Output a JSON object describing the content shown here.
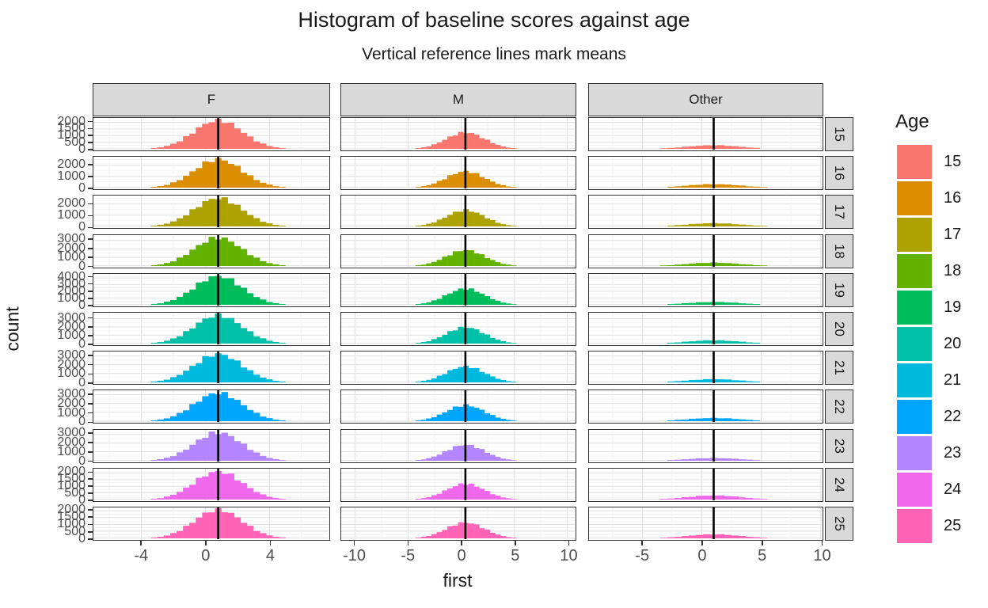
{
  "title": "Histogram of baseline scores against age",
  "subtitle": "Vertical reference lines mark means",
  "axes": {
    "x_label": "first",
    "y_label": "count"
  },
  "legend": {
    "title": "Age",
    "entries": [
      {
        "label": "15",
        "color": "#F8766D"
      },
      {
        "label": "16",
        "color": "#DB8E00"
      },
      {
        "label": "17",
        "color": "#AEA200"
      },
      {
        "label": "18",
        "color": "#64B200"
      },
      {
        "label": "19",
        "color": "#00BD5C"
      },
      {
        "label": "20",
        "color": "#00C1A7"
      },
      {
        "label": "21",
        "color": "#00BADE"
      },
      {
        "label": "22",
        "color": "#00A6FF"
      },
      {
        "label": "23",
        "color": "#B385FF"
      },
      {
        "label": "24",
        "color": "#EF67EB"
      },
      {
        "label": "25",
        "color": "#FF63B6"
      }
    ]
  },
  "chart_data": {
    "type": "bar",
    "subtype": "faceted-histogram",
    "title": "Histogram of baseline scores against age",
    "subtitle": "Vertical reference lines mark means",
    "xlabel": "first",
    "ylabel": "count",
    "grid": true,
    "legend_position": "right",
    "facet_columns": [
      {
        "label": "F",
        "xdomain": [
          -7.0,
          7.7
        ],
        "xticks": [
          -4,
          0,
          4
        ],
        "bin_width": 0.4
      },
      {
        "label": "M",
        "xdomain": [
          -11.3,
          10.7
        ],
        "xticks": [
          -10,
          -5,
          0,
          5,
          10
        ],
        "bin_width": 0.5
      },
      {
        "label": "Other",
        "xdomain": [
          -9.5,
          10.1
        ],
        "xticks": [
          -5,
          0,
          5,
          10
        ],
        "bin_width": 0.6
      }
    ],
    "facet_rows": [
      {
        "label": "15",
        "yticks": [
          0,
          500,
          1000,
          1500,
          2000
        ],
        "ymax": 2200
      },
      {
        "label": "16",
        "yticks": [
          0,
          1000,
          2000
        ],
        "ymax": 2600
      },
      {
        "label": "17",
        "yticks": [
          0,
          1000,
          2000
        ],
        "ymax": 2600
      },
      {
        "label": "18",
        "yticks": [
          0,
          1000,
          2000,
          3000
        ],
        "ymax": 3400
      },
      {
        "label": "19",
        "yticks": [
          0,
          1000,
          2000,
          3000,
          4000
        ],
        "ymax": 4300
      },
      {
        "label": "20",
        "yticks": [
          0,
          1000,
          2000,
          3000
        ],
        "ymax": 3500
      },
      {
        "label": "21",
        "yticks": [
          0,
          1000,
          2000,
          3000
        ],
        "ymax": 3300
      },
      {
        "label": "22",
        "yticks": [
          0,
          1000,
          2000,
          3000
        ],
        "ymax": 3300
      },
      {
        "label": "23",
        "yticks": [
          0,
          1000,
          2000,
          3000
        ],
        "ymax": 3300
      },
      {
        "label": "24",
        "yticks": [
          0,
          500,
          1000,
          1500,
          2000
        ],
        "ymax": 2200
      },
      {
        "label": "25",
        "yticks": [
          0,
          500,
          1000,
          1500,
          2000
        ],
        "ymax": 2100
      }
    ],
    "cells": [
      [
        {
          "mean": 0.8,
          "sd": 1.5,
          "peak": 2100
        },
        {
          "mean": 0.4,
          "sd": 1.8,
          "peak": 1200
        },
        {
          "mean": 1.0,
          "sd": 2.2,
          "peak": 260
        }
      ],
      [
        {
          "mean": 0.8,
          "sd": 1.5,
          "peak": 2450
        },
        {
          "mean": 0.4,
          "sd": 1.8,
          "peak": 1400
        },
        {
          "mean": 1.0,
          "sd": 2.2,
          "peak": 300
        }
      ],
      [
        {
          "mean": 0.8,
          "sd": 1.5,
          "peak": 2450
        },
        {
          "mean": 0.4,
          "sd": 1.8,
          "peak": 1400
        },
        {
          "mean": 1.0,
          "sd": 2.2,
          "peak": 280
        }
      ],
      [
        {
          "mean": 0.8,
          "sd": 1.5,
          "peak": 3200
        },
        {
          "mean": 0.4,
          "sd": 1.8,
          "peak": 1800
        },
        {
          "mean": 1.0,
          "sd": 2.2,
          "peak": 380
        }
      ],
      [
        {
          "mean": 0.8,
          "sd": 1.5,
          "peak": 4100
        },
        {
          "mean": 0.4,
          "sd": 1.8,
          "peak": 2300
        },
        {
          "mean": 1.0,
          "sd": 2.2,
          "peak": 400
        }
      ],
      [
        {
          "mean": 0.8,
          "sd": 1.5,
          "peak": 3300
        },
        {
          "mean": 0.4,
          "sd": 1.8,
          "peak": 1900
        },
        {
          "mean": 1.0,
          "sd": 2.2,
          "peak": 380
        }
      ],
      [
        {
          "mean": 0.8,
          "sd": 1.5,
          "peak": 3100
        },
        {
          "mean": 0.4,
          "sd": 1.8,
          "peak": 1750
        },
        {
          "mean": 1.0,
          "sd": 2.2,
          "peak": 350
        }
      ],
      [
        {
          "mean": 0.8,
          "sd": 1.5,
          "peak": 3100
        },
        {
          "mean": 0.4,
          "sd": 1.8,
          "peak": 1750
        },
        {
          "mean": 1.0,
          "sd": 2.2,
          "peak": 350
        }
      ],
      [
        {
          "mean": 0.8,
          "sd": 1.5,
          "peak": 3100
        },
        {
          "mean": 0.4,
          "sd": 1.8,
          "peak": 1750
        },
        {
          "mean": 1.0,
          "sd": 2.2,
          "peak": 300
        }
      ],
      [
        {
          "mean": 0.8,
          "sd": 1.5,
          "peak": 2050
        },
        {
          "mean": 0.4,
          "sd": 1.8,
          "peak": 1150
        },
        {
          "mean": 1.0,
          "sd": 2.2,
          "peak": 300
        }
      ],
      [
        {
          "mean": 0.8,
          "sd": 1.5,
          "peak": 2000
        },
        {
          "mean": 0.4,
          "sd": 1.8,
          "peak": 1100
        },
        {
          "mean": 1.0,
          "sd": 2.2,
          "peak": 280
        }
      ]
    ],
    "mean_line_color": "#000000",
    "panel_grid_major_color": "#e2e2e2",
    "panel_grid_minor_color": "#f1f1f1",
    "strip_fill": "#d9d9d9"
  }
}
